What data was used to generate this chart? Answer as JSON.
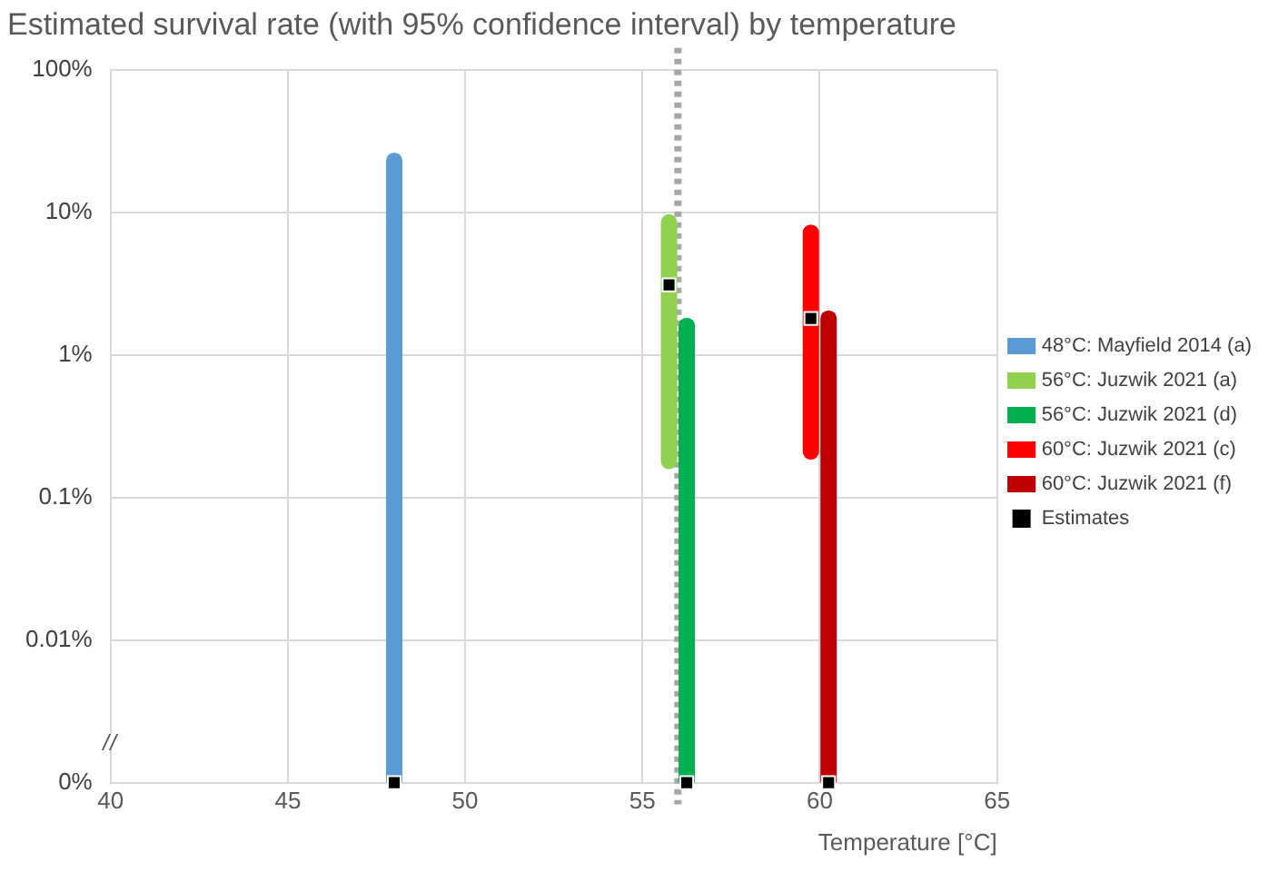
{
  "chart_data": {
    "type": "line",
    "title": "Estimated survival rate (with 95% confidence interval) by temperature",
    "xlabel": "Temperature [°C]",
    "xlim": [
      40,
      65
    ],
    "xticks": [
      40,
      45,
      50,
      55,
      60,
      65
    ],
    "log": true,
    "ylim": [
      0.001,
      100
    ],
    "yticks": [
      {
        "value": 0.001,
        "label": "0%"
      },
      {
        "value": 0.01,
        "label": "0.01%"
      },
      {
        "value": 0.1,
        "label": "0.1%"
      },
      {
        "value": 1,
        "label": "1%"
      },
      {
        "value": 10,
        "label": "10%"
      },
      {
        "value": 100,
        "label": "100%"
      }
    ],
    "grid": true,
    "legend": "right",
    "line_style": "solid",
    "series": [
      {
        "name": "48°C: Mayfield 2014 (a)",
        "color": "#5b9bd5",
        "x": [
          48,
          48
        ],
        "values": [
          0.001,
          23
        ]
      },
      {
        "name": "56°C: Juzwik 2021 (a)",
        "color": "#92d050",
        "x": [
          55.75,
          55.75
        ],
        "values": [
          0.18,
          8.5
        ]
      },
      {
        "name": "56°C: Juzwik 2021 (d)",
        "color": "#00b050",
        "x": [
          56.25,
          56.25
        ],
        "values": [
          0.001,
          1.6
        ]
      },
      {
        "name": "60°C: Juzwik 2021 (c)",
        "color": "#ff0000",
        "x": [
          59.75,
          59.75
        ],
        "values": [
          0.21,
          7.2
        ]
      },
      {
        "name": "60°C: Juzwik 2021 (f)",
        "color": "#c00000",
        "x": [
          60.25,
          60.25
        ],
        "values": [
          0.001,
          1.8
        ]
      },
      {
        "name": "Estimates",
        "type": "scatter",
        "marker": "square",
        "color": "#000000",
        "x": [
          48,
          55.75,
          56.25,
          59.75,
          60.25
        ],
        "values": [
          0.001,
          3.1,
          0.001,
          1.8,
          0.001
        ]
      }
    ],
    "ref_lines": [
      {
        "axis": "x",
        "value": 56,
        "color": "#a6a6a6",
        "line_style": "dotted"
      }
    ]
  }
}
